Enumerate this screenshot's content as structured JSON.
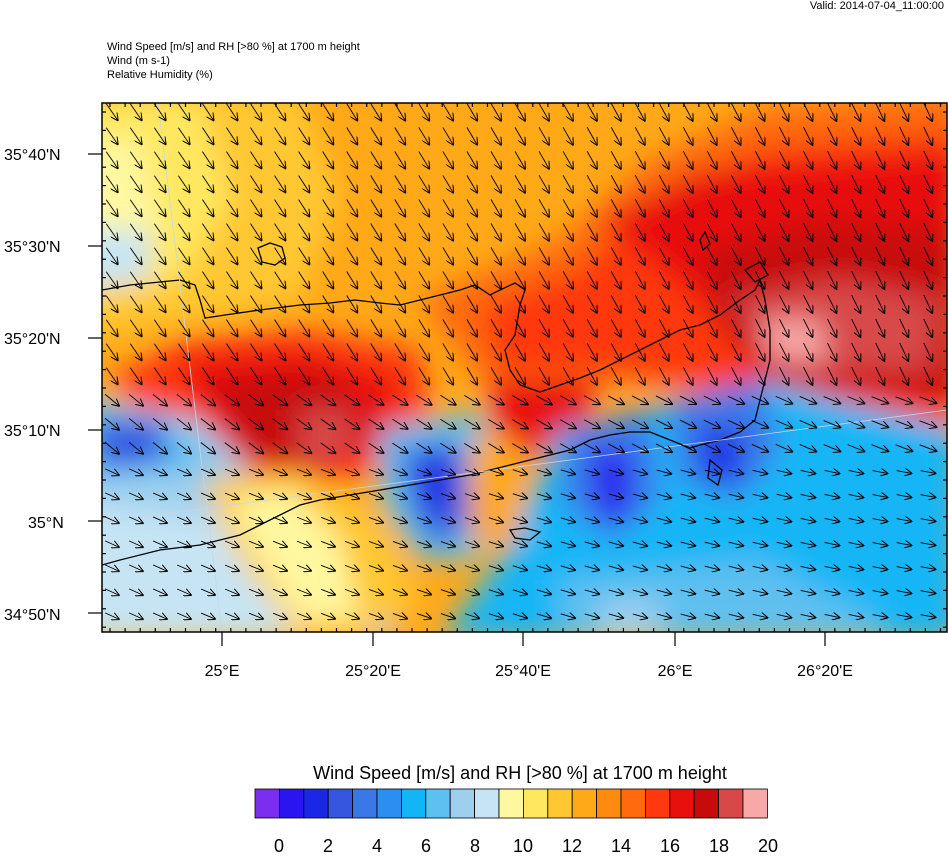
{
  "valid": "Valid: 2014-07-04_11:00:00",
  "header": {
    "line1": "Wind Speed [m/s] and RH [>80 %] at 1700 m height",
    "line2": "Wind   (m s-1)",
    "line3": "Relative Humidity   (%)"
  },
  "axes": {
    "lat_labels": [
      "35°40'N",
      "35°30'N",
      "35°20'N",
      "35°10'N",
      "35°N",
      "34°50'N"
    ],
    "lon_labels": [
      "25°E",
      "25°20'E",
      "25°40'E",
      "26°E",
      "26°20'E"
    ]
  },
  "colorbar": {
    "title": "Wind Speed [m/s] and RH [>80 %] at 1700 m height",
    "labels": [
      "0",
      "2",
      "4",
      "6",
      "8",
      "10",
      "12",
      "14",
      "16",
      "18",
      "20"
    ],
    "colors": [
      "#7b2ef0",
      "#2a14f0",
      "#1a28e6",
      "#3656e0",
      "#3a78ea",
      "#2a8ef2",
      "#12b6f6",
      "#5ec0f0",
      "#9ed0ee",
      "#c6e4f4",
      "#fff8a0",
      "#ffe860",
      "#ffc830",
      "#ffa818",
      "#ff8a10",
      "#ff6a0e",
      "#ff3810",
      "#e8100c",
      "#c80a0a",
      "#d84848",
      "#f8a8a8"
    ]
  }
}
